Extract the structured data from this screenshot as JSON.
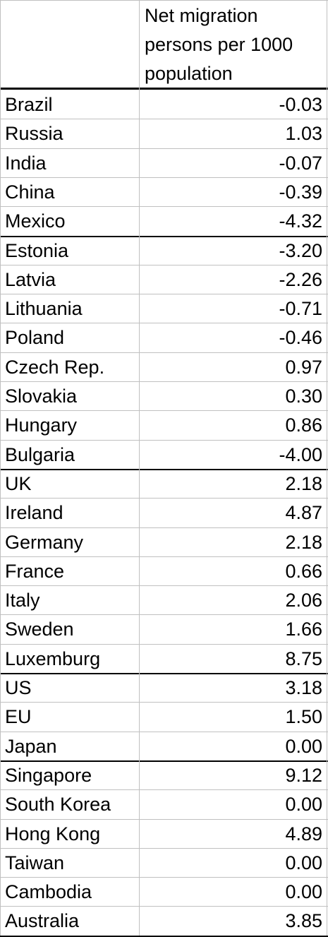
{
  "header": {
    "line1": "Net migration",
    "line2": "persons per 1000",
    "line3": "population"
  },
  "rows": [
    {
      "country": "Brazil",
      "value": "-0.03"
    },
    {
      "country": "Russia",
      "value": "1.03"
    },
    {
      "country": "India",
      "value": "-0.07"
    },
    {
      "country": "China",
      "value": "-0.39"
    },
    {
      "country": "Mexico",
      "value": "-4.32"
    },
    {
      "country": "Estonia",
      "value": "-3.20"
    },
    {
      "country": "Latvia",
      "value": "-2.26"
    },
    {
      "country": "Lithuania",
      "value": "-0.71"
    },
    {
      "country": "Poland",
      "value": "-0.46"
    },
    {
      "country": "Czech Rep.",
      "value": "0.97"
    },
    {
      "country": "Slovakia",
      "value": "0.30"
    },
    {
      "country": "Hungary",
      "value": "0.86"
    },
    {
      "country": "Bulgaria",
      "value": "-4.00"
    },
    {
      "country": "UK",
      "value": "2.18"
    },
    {
      "country": "Ireland",
      "value": "4.87"
    },
    {
      "country": "Germany",
      "value": "2.18"
    },
    {
      "country": "France",
      "value": "0.66"
    },
    {
      "country": "Italy",
      "value": "2.06"
    },
    {
      "country": "Sweden",
      "value": "1.66"
    },
    {
      "country": "Luxemburg",
      "value": "8.75"
    },
    {
      "country": "US",
      "value": "3.18"
    },
    {
      "country": "EU",
      "value": "1.50"
    },
    {
      "country": "Japan",
      "value": "0.00"
    },
    {
      "country": "Singapore",
      "value": "9.12"
    },
    {
      "country": "South Korea",
      "value": "0.00"
    },
    {
      "country": "Hong Kong",
      "value": "4.89"
    },
    {
      "country": "Taiwan",
      "value": "0.00"
    },
    {
      "country": "Cambodia",
      "value": "0.00"
    },
    {
      "country": "Australia",
      "value": "3.85"
    }
  ]
}
